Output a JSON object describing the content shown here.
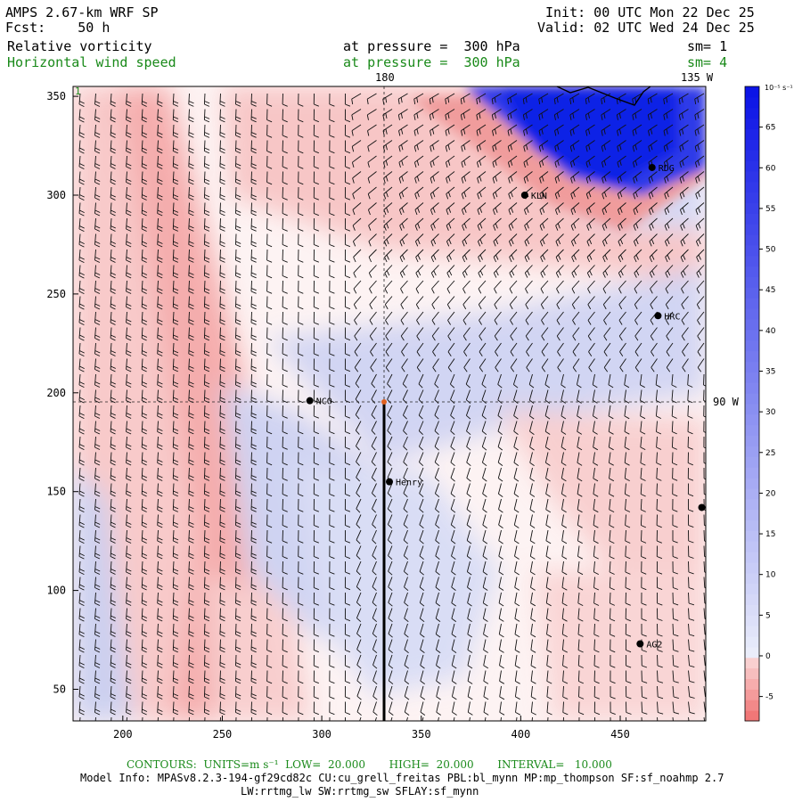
{
  "header": {
    "title": "AMPS 2.67-km WRF SP",
    "fcst": "Fcst:    50 h",
    "init": "Init: 00 UTC Mon 22 Dec 25",
    "valid": "Valid: 02 UTC Wed 24 Dec 25",
    "field1": {
      "name": "Relative vorticity",
      "level": "at pressure =  300 hPa",
      "sm": "sm= 1"
    },
    "field2": {
      "name": "Horizontal wind speed",
      "level": "at pressure =  300 hPa",
      "sm": "sm= 4"
    }
  },
  "map": {
    "lon_labels": {
      "top_left": "180",
      "top_right": "135 W",
      "right": "90 W"
    },
    "stations": [
      {
        "id": "RDG",
        "x": 466,
        "y": 314
      },
      {
        "id": "KLN",
        "x": 402,
        "y": 300
      },
      {
        "id": "HRC",
        "x": 469,
        "y": 239
      },
      {
        "id": "NCO",
        "x": 294,
        "y": 196
      },
      {
        "id": "Henry",
        "x": 334,
        "y": 155
      },
      {
        "id": "AG2",
        "x": 460,
        "y": 73
      },
      {
        "id": "",
        "x": 491,
        "y": 142
      }
    ],
    "corner_label": "1"
  },
  "chart_data": {
    "type": "heatmap",
    "title": "Relative vorticity & Horizontal wind speed at 300 hPa",
    "x_ticks": [
      200,
      250,
      300,
      350,
      400,
      450
    ],
    "y_ticks": [
      50,
      100,
      150,
      200,
      250,
      300,
      350
    ],
    "xlim": [
      175,
      493
    ],
    "ylim": [
      34,
      355
    ],
    "colorbar": {
      "unit_label": "10⁻⁵ s⁻¹",
      "ticks": [
        65,
        60,
        55,
        50,
        45,
        40,
        35,
        30,
        25,
        20,
        15,
        10,
        5,
        0,
        -5
      ],
      "range": [
        -8,
        70
      ]
    }
  },
  "footer": {
    "contours": "CONTOURS:  UNITS=m s⁻¹  LOW=  20.000       HIGH=  20.000       INTERVAL=   10.000",
    "model_info": "Model Info: MPASv8.2.3-194-gf29cd82c CU:cu_grell_freitas PBL:bl_mynn MP:mp_thompson SF:sf_noahmp 2.7",
    "model_info2": "LW:rrtmg_lw SW:rrtmg_sw SFLAY:sf_mynn"
  },
  "colors": {
    "green": "#1a8a1a",
    "deep_blue": "#0a1ee6",
    "pink": "#f6b4b4"
  }
}
